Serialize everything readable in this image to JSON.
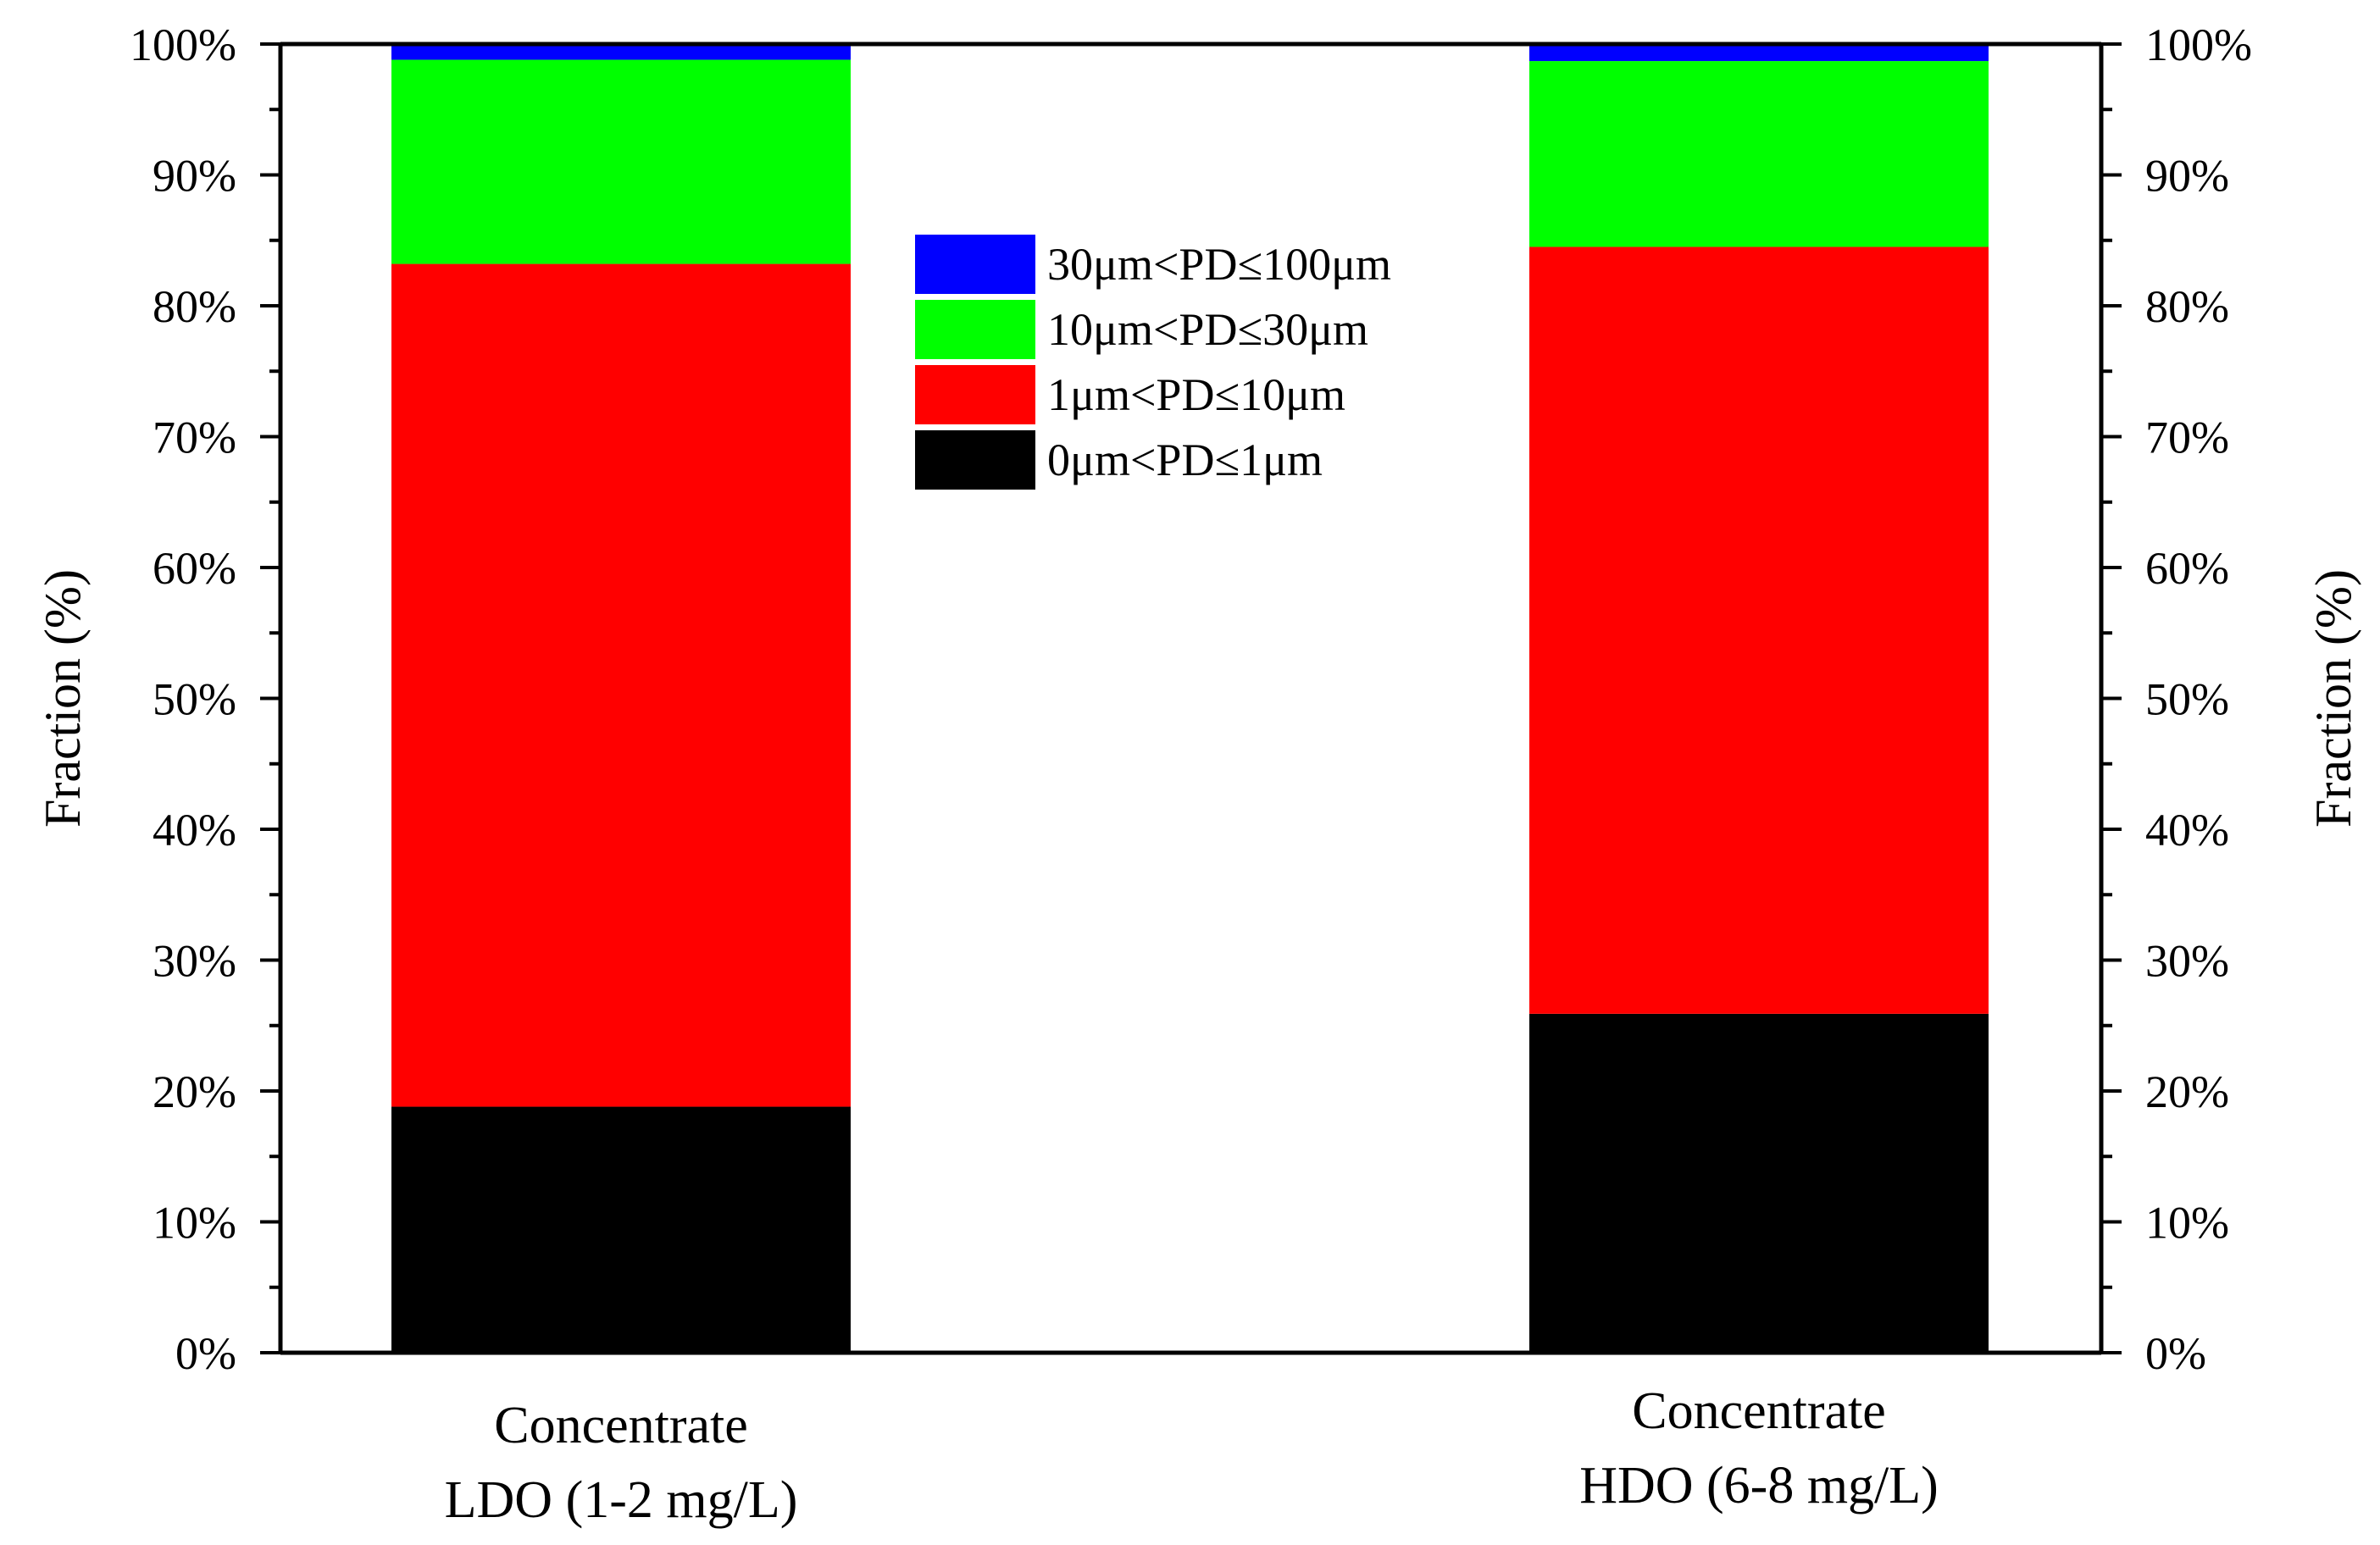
{
  "chart_data": {
    "type": "bar",
    "stacked": true,
    "categories": [
      [
        "Concentrate",
        "LDO (1-2 mg/L)"
      ],
      [
        "Concentrate",
        "HDO (6-8 mg/L)"
      ]
    ],
    "series": [
      {
        "name": "0μm<PD≤1μm",
        "color": "#000000",
        "values": [
          18.8,
          25.9
        ]
      },
      {
        "name": "1μm<PD≤10μm",
        "color": "#ff0000",
        "values": [
          64.4,
          58.6
        ]
      },
      {
        "name": "10μm<PD≤30μm",
        "color": "#00ff00",
        "values": [
          15.6,
          14.2
        ]
      },
      {
        "name": "30μm<PD≤100μm",
        "color": "#0000ff",
        "values": [
          1.2,
          1.3
        ]
      }
    ],
    "ylabel": "Fraction (%)",
    "ylabel_right": "Fraction (%)",
    "ylim": [
      0,
      100
    ],
    "yticks": [
      "0%",
      "10%",
      "20%",
      "30%",
      "40%",
      "50%",
      "60%",
      "70%",
      "80%",
      "90%",
      "100%"
    ],
    "legend": {
      "placement": "top-center",
      "order": [
        "30μm<PD≤100μm",
        "10μm<PD≤30μm",
        "1μm<PD≤10μm",
        "0μm<PD≤1μm"
      ]
    },
    "grid": false
  }
}
